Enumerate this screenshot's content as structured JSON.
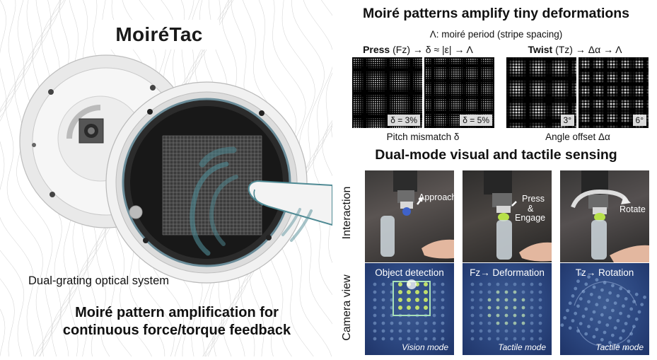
{
  "left": {
    "logo": "MoiréTac",
    "caption_optical": "Dual-grating optical system",
    "caption_amp_line1": "Moiré pattern amplification for",
    "caption_amp_line2": "continuous force/torque feedback"
  },
  "moire_section": {
    "title": "Moiré patterns amplify tiny deformations",
    "period_note": "Λ: moiré period (stripe spacing)",
    "press": {
      "bold": "Press",
      "rest": " (Fz) → δ ≈ |ε| → Λ"
    },
    "twist": {
      "bold": "Twist",
      "rest": " (Tz) → Δα → Λ"
    },
    "images": [
      {
        "label": "δ = 3%",
        "group": "press"
      },
      {
        "label": "δ = 5%",
        "group": "press"
      },
      {
        "label": "3°",
        "group": "twist"
      },
      {
        "label": "6°",
        "group": "twist"
      }
    ],
    "caption_pitch": "Pitch mismatch δ",
    "caption_angle": "Angle offset Δα"
  },
  "sensing_section": {
    "title": "Dual-mode visual and tactile sensing",
    "row_interaction": "Interaction",
    "row_camera": "Camera view",
    "interaction": [
      {
        "label1": "Approach"
      },
      {
        "label1": "Press",
        "label2": "&",
        "label3": "Engage"
      },
      {
        "label1": "Rotate"
      }
    ],
    "camera": [
      {
        "title": "Object detection",
        "mode": "Vision mode"
      },
      {
        "title": "Fz→ Deformation",
        "mode": "Tactile mode"
      },
      {
        "title": "Tz→ Rotation",
        "mode": "Tactile mode"
      }
    ]
  },
  "colors": {
    "arrow_teal": "#4f8a94",
    "camera_blue": "#2c4780",
    "detection_box": "#a8e0b8",
    "bottle_green": "#b7e04a"
  }
}
